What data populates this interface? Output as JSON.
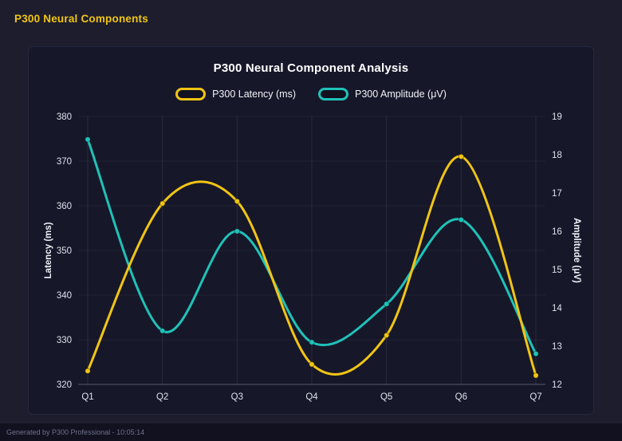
{
  "page": {
    "header_title": "P300 Neural Components",
    "footer_text": "Generated by P300 Professional - 10:05:14"
  },
  "colors": {
    "background": "#1d1d2e",
    "panel": "#17172a",
    "accent_yellow": "#f0c514",
    "accent_teal": "#1fc2b8",
    "title_text": "#ffffff",
    "tick_text": "#dde1ea"
  },
  "chart_data": {
    "type": "line",
    "title": "P300 Neural Component Analysis",
    "categories": [
      "Q1",
      "Q2",
      "Q3",
      "Q4",
      "Q5",
      "Q6",
      "Q7"
    ],
    "series": [
      {
        "name": "P300 Latency (ms)",
        "axis": "left",
        "color": "#f0c514",
        "values": [
          323,
          360.5,
          361,
          324.5,
          331,
          371,
          322
        ]
      },
      {
        "name": "P300 Amplitude (μV)",
        "axis": "right",
        "color": "#1fc2b8",
        "values": [
          18.4,
          13.4,
          16.0,
          13.1,
          14.1,
          16.3,
          12.8
        ]
      }
    ],
    "left_axis": {
      "label": "Latency (ms)",
      "min": 320,
      "max": 380,
      "step": 10
    },
    "right_axis": {
      "label": "Amplitude (μV)",
      "min": 12,
      "max": 19,
      "step": 1
    },
    "grid": true,
    "smooth": true,
    "legend_position": "top"
  }
}
